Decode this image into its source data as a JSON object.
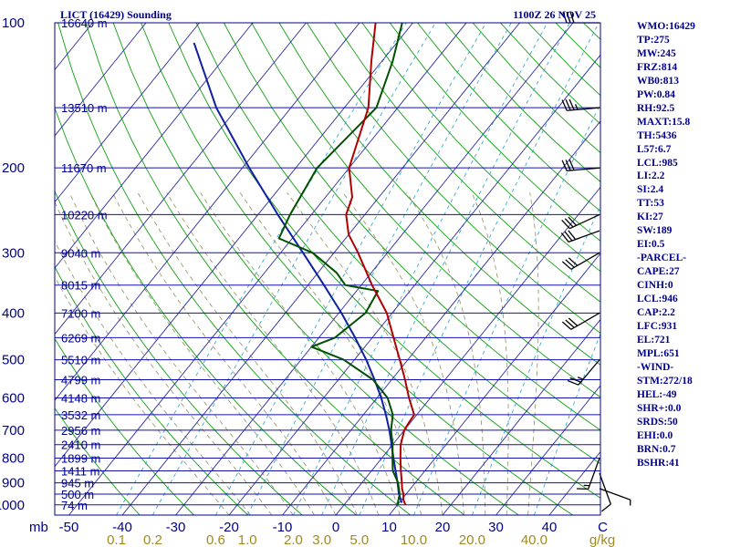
{
  "chart_data": {
    "type": "skew-t sounding",
    "title_left": "LICT (16429) Sounding",
    "title_right": "1100Z 26 NOV 25",
    "pressure_levels": [
      {
        "p": 100,
        "label": "100"
      },
      {
        "p": 200,
        "label": "200"
      },
      {
        "p": 300,
        "label": "300"
      },
      {
        "p": 400,
        "label": "400"
      },
      {
        "p": 500,
        "label": "500"
      },
      {
        "p": 600,
        "label": "600"
      },
      {
        "p": 700,
        "label": "700"
      },
      {
        "p": 800,
        "label": "800"
      },
      {
        "p": 900,
        "label": "900"
      },
      {
        "p": 1000,
        "label": "1000"
      }
    ],
    "height_labels": [
      {
        "p": 100,
        "label": "16640 m"
      },
      {
        "p": 150,
        "label": "13510 m"
      },
      {
        "p": 200,
        "label": "11670 m"
      },
      {
        "p": 250,
        "label": "10220 m"
      },
      {
        "p": 300,
        "label": "9040 m"
      },
      {
        "p": 350,
        "label": "8015 m"
      },
      {
        "p": 400,
        "label": "7100 m"
      },
      {
        "p": 450,
        "label": "6269 m"
      },
      {
        "p": 500,
        "label": "5510 m"
      },
      {
        "p": 550,
        "label": "4799 m"
      },
      {
        "p": 600,
        "label": "4148 m"
      },
      {
        "p": 650,
        "label": "3532 m"
      },
      {
        "p": 700,
        "label": "2956 m"
      },
      {
        "p": 750,
        "label": "2410 m"
      },
      {
        "p": 800,
        "label": "1899 m"
      },
      {
        "p": 850,
        "label": "1411 m"
      },
      {
        "p": 900,
        "label": "945 m"
      },
      {
        "p": 950,
        "label": "500 m"
      },
      {
        "p": 1000,
        "label": "74 m"
      }
    ],
    "x_axis_unit": "mb",
    "temperature_ticks": [
      {
        "t": -50,
        "label": "-50"
      },
      {
        "t": -40,
        "label": "-40"
      },
      {
        "t": -30,
        "label": "-30"
      },
      {
        "t": -20,
        "label": "-20"
      },
      {
        "t": -10,
        "label": "-10"
      },
      {
        "t": 0,
        "label": "0"
      },
      {
        "t": 10,
        "label": "10"
      },
      {
        "t": 20,
        "label": "20"
      },
      {
        "t": 30,
        "label": "30"
      },
      {
        "t": 40,
        "label": "40"
      },
      {
        "t": 50,
        "label": "C"
      }
    ],
    "mixing_ratio_ticks": [
      {
        "w": 0.1,
        "label": "0.1"
      },
      {
        "w": 0.2,
        "label": "0.2"
      },
      {
        "w": 0.6,
        "label": "0.6"
      },
      {
        "w": 1.0,
        "label": "1.0"
      },
      {
        "w": 2.0,
        "label": "2.0"
      },
      {
        "w": 3.0,
        "label": "3.0"
      },
      {
        "w": 5.0,
        "label": "5.0"
      },
      {
        "w": 10.0,
        "label": "10.0"
      },
      {
        "w": 20.0,
        "label": "20.0"
      },
      {
        "w": 40.0,
        "label": "40.0"
      }
    ],
    "mixing_ratio_unit": "g/kg",
    "temperature_profile": [
      {
        "p": 1000,
        "t": 11.5
      },
      {
        "p": 975,
        "t": 10.3
      },
      {
        "p": 950,
        "t": 9.5
      },
      {
        "p": 925,
        "t": 8.4
      },
      {
        "p": 900,
        "t": 7.5
      },
      {
        "p": 850,
        "t": 5.5
      },
      {
        "p": 800,
        "t": 3.5
      },
      {
        "p": 750,
        "t": 1.5
      },
      {
        "p": 700,
        "t": 0.0
      },
      {
        "p": 675,
        "t": -0.3
      },
      {
        "p": 650,
        "t": -0.5
      },
      {
        "p": 600,
        "t": -4.0
      },
      {
        "p": 550,
        "t": -7.5
      },
      {
        "p": 500,
        "t": -11.5
      },
      {
        "p": 450,
        "t": -16.0
      },
      {
        "p": 400,
        "t": -21.0
      },
      {
        "p": 350,
        "t": -28.0
      },
      {
        "p": 300,
        "t": -35.5
      },
      {
        "p": 275,
        "t": -40.0
      },
      {
        "p": 250,
        "t": -43.5
      },
      {
        "p": 230,
        "t": -45.0
      },
      {
        "p": 200,
        "t": -50.0
      },
      {
        "p": 150,
        "t": -55.5
      },
      {
        "p": 120,
        "t": -62.0
      },
      {
        "p": 100,
        "t": -67.0
      }
    ],
    "dewpoint_profile": [
      {
        "p": 1000,
        "t": 10.0
      },
      {
        "p": 950,
        "t": 8.8
      },
      {
        "p": 900,
        "t": 6.8
      },
      {
        "p": 850,
        "t": 4.0
      },
      {
        "p": 800,
        "t": 2.0
      },
      {
        "p": 750,
        "t": 0.0
      },
      {
        "p": 700,
        "t": -2.5
      },
      {
        "p": 650,
        "t": -4.5
      },
      {
        "p": 600,
        "t": -8.0
      },
      {
        "p": 550,
        "t": -13.5
      },
      {
        "p": 500,
        "t": -22.0
      },
      {
        "p": 470,
        "t": -30.0
      },
      {
        "p": 450,
        "t": -27.0
      },
      {
        "p": 400,
        "t": -25.0
      },
      {
        "p": 360,
        "t": -26.0
      },
      {
        "p": 350,
        "t": -33.0
      },
      {
        "p": 330,
        "t": -36.5
      },
      {
        "p": 300,
        "t": -44.0
      },
      {
        "p": 280,
        "t": -52.5
      },
      {
        "p": 250,
        "t": -54.0
      },
      {
        "p": 200,
        "t": -56.0
      },
      {
        "p": 150,
        "t": -54.0
      },
      {
        "p": 120,
        "t": -58.0
      },
      {
        "p": 100,
        "t": -62.0
      }
    ],
    "parcel_profile": [
      {
        "p": 990,
        "t": 10.5
      },
      {
        "p": 946,
        "t": 8.5
      },
      {
        "p": 900,
        "t": 6.7
      },
      {
        "p": 850,
        "t": 4.5
      },
      {
        "p": 800,
        "t": 2.2
      },
      {
        "p": 750,
        "t": -0.2
      },
      {
        "p": 700,
        "t": -2.8
      },
      {
        "p": 650,
        "t": -5.8
      },
      {
        "p": 600,
        "t": -9.2
      },
      {
        "p": 550,
        "t": -13.2
      },
      {
        "p": 500,
        "t": -17.8
      },
      {
        "p": 450,
        "t": -23.2
      },
      {
        "p": 400,
        "t": -29.5
      },
      {
        "p": 350,
        "t": -37.0
      },
      {
        "p": 300,
        "t": -45.8
      },
      {
        "p": 250,
        "t": -56.3
      },
      {
        "p": 200,
        "t": -68.7
      },
      {
        "p": 150,
        "t": -84.0
      },
      {
        "p": 110,
        "t": -98.0
      }
    ],
    "wind_barbs": [
      {
        "p": 100,
        "dir": 270,
        "kt": 30
      },
      {
        "p": 150,
        "dir": 265,
        "kt": 35
      },
      {
        "p": 200,
        "dir": 265,
        "kt": 30
      },
      {
        "p": 250,
        "dir": 245,
        "kt": 30
      },
      {
        "p": 270,
        "dir": 250,
        "kt": 30
      },
      {
        "p": 300,
        "dir": 240,
        "kt": 30
      },
      {
        "p": 400,
        "dir": 240,
        "kt": 30
      },
      {
        "p": 500,
        "dir": 220,
        "kt": 25
      },
      {
        "p": 800,
        "dir": 200,
        "kt": 15
      },
      {
        "p": 860,
        "dir": 160,
        "kt": 10
      },
      {
        "p": 925,
        "dir": 110,
        "kt": 5
      }
    ],
    "colors": {
      "isobar": "#1010b0",
      "isotherm": "#2a2aa0",
      "dry_adiabat": "#10a010",
      "moist_adiabat": "#909060",
      "mixing_ratio": "#20a0d0",
      "temperature": "#b00000",
      "dewpoint": "#005000",
      "parcel": "#1020a0",
      "label": "#00008b",
      "mixing_label": "#a08a20",
      "wind": "#000000"
    }
  },
  "indices": [
    "WMO:16429",
    "TP:275",
    "MW:245",
    "FRZ:814",
    "WB0:813",
    "PW:0.84",
    "RH:92.5",
    "MAXT:15.8",
    "TH:5436",
    "L57:6.7",
    "LCL:985",
    "LI:2.2",
    "SI:2.4",
    "TT:53",
    "KI:27",
    "SW:189",
    "EI:0.5",
    "-PARCEL-",
    "CAPE:27",
    "CINH:0",
    "LCL:946",
    "CAP:2.2",
    "LFC:931",
    "EL:721",
    "MPL:651",
    "-WIND-",
    "STM:272/18",
    "HEL:-49",
    "SHR+:0.0",
    "SRDS:50",
    "EHI:0.0",
    "BRN:0.7",
    "BSHR:41"
  ]
}
